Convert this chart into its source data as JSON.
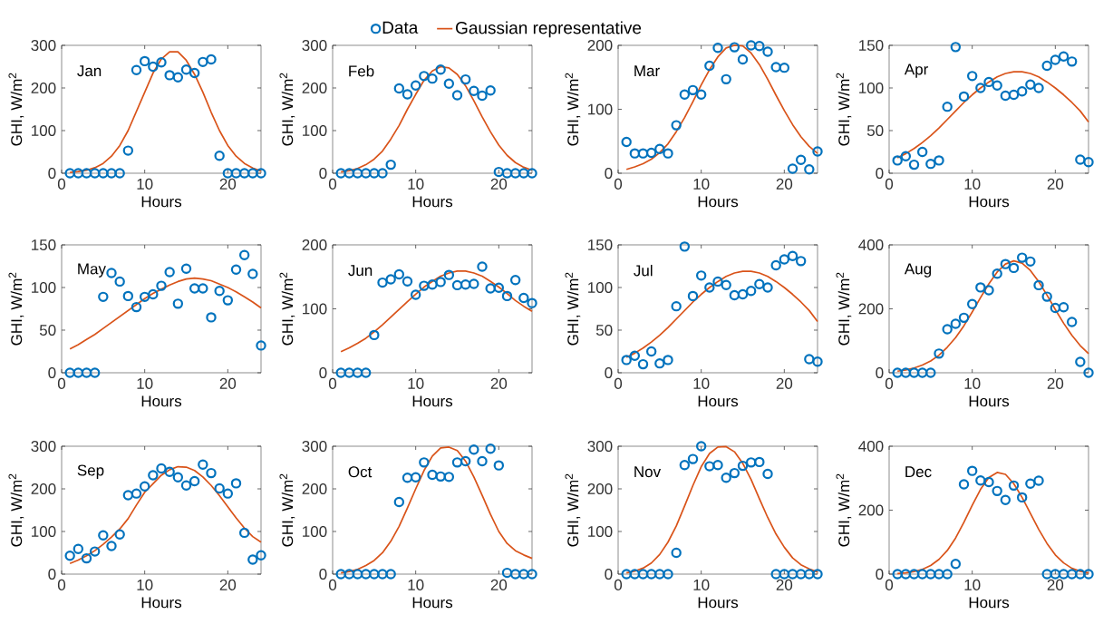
{
  "chart_data": [
    {
      "type": "scatter",
      "annotations": [
        "Jan"
      ],
      "xlabel": "Hours",
      "ylabel": "GHI, W/m$^{2}$",
      "xlim": [
        0,
        24
      ],
      "ylim": [
        0,
        300
      ],
      "xticks": [
        0,
        10,
        20
      ],
      "yticks": [
        0,
        100,
        200,
        300
      ],
      "legend": "top",
      "x": [
        1,
        2,
        3,
        4,
        5,
        6,
        7,
        8,
        9,
        10,
        11,
        12,
        13,
        14,
        15,
        16,
        17,
        18,
        19,
        20,
        21,
        22,
        23,
        24
      ],
      "series": [
        {
          "name": "Data",
          "marker": "circle",
          "color": "#0072bd",
          "values": [
            0,
            0,
            0,
            0,
            0,
            0,
            0,
            53,
            242,
            263,
            250,
            260,
            230,
            225,
            243,
            235,
            261,
            267,
            41,
            0,
            0,
            0,
            0,
            0
          ]
        },
        {
          "name": "Gaussian representative",
          "type": "line",
          "color": "#d95319",
          "values": [
            2,
            4,
            7,
            13,
            23,
            40,
            65,
            100,
            145,
            190,
            235,
            268,
            285,
            285,
            265,
            232,
            190,
            143,
            100,
            65,
            40,
            23,
            12,
            5
          ]
        }
      ]
    },
    {
      "type": "scatter",
      "annotations": [
        "Feb"
      ],
      "xlabel": "Hours",
      "ylabel": "GHI, W/m$^{2}$",
      "xlim": [
        0,
        24
      ],
      "ylim": [
        0,
        300
      ],
      "xticks": [
        0,
        10,
        20
      ],
      "yticks": [
        0,
        100,
        200,
        300
      ],
      "x": [
        1,
        2,
        3,
        4,
        5,
        6,
        7,
        8,
        9,
        10,
        11,
        12,
        13,
        14,
        15,
        16,
        17,
        18,
        19,
        20,
        21,
        22,
        23,
        24
      ],
      "series": [
        {
          "marker": "circle",
          "color": "#0072bd",
          "values": [
            0,
            0,
            0,
            0,
            0,
            0,
            20,
            199,
            185,
            206,
            228,
            222,
            243,
            210,
            183,
            220,
            193,
            182,
            194,
            3,
            0,
            0,
            0,
            0
          ]
        },
        {
          "type": "line",
          "color": "#d95319",
          "values": [
            3,
            6,
            11,
            20,
            33,
            52,
            80,
            112,
            150,
            185,
            218,
            240,
            250,
            247,
            232,
            205,
            170,
            132,
            97,
            66,
            42,
            25,
            14,
            7
          ]
        }
      ]
    },
    {
      "type": "scatter",
      "annotations": [
        "Mar"
      ],
      "xlabel": "Hours",
      "ylabel": "GHI, W/m$^{2}$",
      "xlim": [
        0,
        24
      ],
      "ylim": [
        0,
        200
      ],
      "xticks": [
        0,
        10,
        20
      ],
      "yticks": [
        0,
        100,
        200
      ],
      "x": [
        1,
        2,
        3,
        4,
        5,
        6,
        7,
        8,
        9,
        10,
        11,
        12,
        13,
        14,
        15,
        16,
        17,
        18,
        19,
        20,
        21,
        22,
        23,
        24
      ],
      "series": [
        {
          "marker": "circle",
          "color": "#0072bd",
          "values": [
            49,
            31,
            31,
            32,
            38,
            31,
            75,
            123,
            130,
            123,
            168,
            196,
            147,
            197,
            178,
            200,
            199,
            190,
            166,
            165,
            7,
            21,
            6,
            34
          ]
        },
        {
          "type": "line",
          "color": "#d95319",
          "values": [
            6,
            10,
            15,
            22,
            32,
            46,
            65,
            87,
            112,
            138,
            162,
            182,
            196,
            200,
            199,
            188,
            170,
            147,
            122,
            98,
            76,
            57,
            42,
            31
          ]
        }
      ]
    },
    {
      "type": "scatter",
      "annotations": [
        "Apr"
      ],
      "xlabel": "Hours",
      "ylabel": "GHI, W/m$^{2}$",
      "xlim": [
        0,
        24
      ],
      "ylim": [
        0,
        150
      ],
      "xticks": [
        0,
        10,
        20
      ],
      "yticks": [
        0,
        50,
        100,
        150
      ],
      "x": [
        1,
        2,
        3,
        4,
        5,
        6,
        7,
        8,
        9,
        10,
        11,
        12,
        13,
        14,
        15,
        16,
        17,
        18,
        19,
        20,
        21,
        22,
        23,
        24
      ],
      "series": [
        {
          "marker": "circle",
          "color": "#0072bd",
          "values": [
            15,
            20,
            10,
            25,
            11,
            15,
            78,
            148,
            90,
            114,
            100,
            107,
            103,
            91,
            92,
            96,
            104,
            100,
            126,
            133,
            137,
            131,
            16,
            13
          ]
        },
        {
          "type": "line",
          "color": "#d95319",
          "values": [
            18,
            23,
            29,
            36,
            44,
            53,
            63,
            73,
            83,
            92,
            100,
            107,
            113,
            117,
            119,
            119,
            117,
            113,
            107,
            100,
            92,
            83,
            73,
            60
          ]
        }
      ]
    },
    {
      "type": "scatter",
      "annotations": [
        "May"
      ],
      "xlabel": "Hours",
      "ylabel": "GHI, W/m$^{2}$",
      "xlim": [
        0,
        24
      ],
      "ylim": [
        0,
        150
      ],
      "xticks": [
        0,
        10,
        20
      ],
      "yticks": [
        0,
        50,
        100,
        150
      ],
      "x": [
        1,
        2,
        3,
        4,
        5,
        6,
        7,
        8,
        9,
        10,
        11,
        12,
        13,
        14,
        15,
        16,
        17,
        18,
        19,
        20,
        21,
        22,
        23,
        24
      ],
      "series": [
        {
          "marker": "circle",
          "color": "#0072bd",
          "values": [
            0,
            0,
            0,
            0,
            89,
            117,
            107,
            90,
            77,
            89,
            92,
            102,
            118,
            81,
            122,
            99,
            99,
            65,
            96,
            85,
            121,
            138,
            116,
            32
          ]
        },
        {
          "type": "line",
          "color": "#d95319",
          "values": [
            28,
            33,
            39,
            45,
            52,
            59,
            66,
            73,
            80,
            87,
            93,
            98,
            103,
            107,
            110,
            111,
            110,
            108,
            104,
            100,
            95,
            89,
            83,
            76
          ]
        }
      ]
    },
    {
      "type": "scatter",
      "annotations": [
        "Jun"
      ],
      "xlabel": "Hours",
      "ylabel": "GHI, W/m$^{2}$",
      "xlim": [
        0,
        24
      ],
      "ylim": [
        0,
        200
      ],
      "xticks": [
        0,
        10,
        20
      ],
      "yticks": [
        0,
        100,
        200
      ],
      "x": [
        1,
        2,
        3,
        4,
        5,
        6,
        7,
        8,
        9,
        10,
        11,
        12,
        13,
        14,
        15,
        16,
        17,
        18,
        19,
        20,
        21,
        22,
        23,
        24
      ],
      "series": [
        {
          "marker": "circle",
          "color": "#0072bd",
          "values": [
            0,
            0,
            0,
            0,
            59,
            141,
            146,
            154,
            143,
            122,
            136,
            138,
            142,
            153,
            137,
            138,
            139,
            166,
            132,
            133,
            120,
            145,
            117,
            109
          ]
        },
        {
          "type": "line",
          "color": "#d95319",
          "values": [
            33,
            39,
            46,
            54,
            64,
            75,
            87,
            99,
            111,
            123,
            134,
            143,
            151,
            156,
            159,
            159,
            156,
            151,
            143,
            134,
            124,
            113,
            104,
            96
          ]
        }
      ]
    },
    {
      "type": "scatter",
      "annotations": [
        "Jul"
      ],
      "xlabel": "Hours",
      "ylabel": "GHI, W/m$^{2}$",
      "xlim": [
        0,
        24
      ],
      "ylim": [
        0,
        150
      ],
      "xticks": [
        0,
        10,
        20
      ],
      "yticks": [
        0,
        50,
        100,
        150
      ],
      "x": [
        1,
        2,
        3,
        4,
        5,
        6,
        7,
        8,
        9,
        10,
        11,
        12,
        13,
        14,
        15,
        16,
        17,
        18,
        19,
        20,
        21,
        22,
        23,
        24
      ],
      "series": [
        {
          "marker": "circle",
          "color": "#0072bd",
          "values": [
            15,
            20,
            10,
            25,
            11,
            15,
            78,
            148,
            90,
            114,
            100,
            107,
            103,
            91,
            92,
            96,
            104,
            100,
            126,
            133,
            137,
            131,
            16,
            13
          ]
        },
        {
          "type": "line",
          "color": "#d95319",
          "values": [
            18,
            23,
            29,
            36,
            44,
            53,
            63,
            73,
            83,
            92,
            100,
            107,
            113,
            117,
            119,
            119,
            117,
            113,
            107,
            100,
            92,
            83,
            73,
            60
          ]
        }
      ]
    },
    {
      "type": "scatter",
      "annotations": [
        "Aug"
      ],
      "xlabel": "Hours",
      "ylabel": "GHI, W/m$^{2}$",
      "xlim": [
        0,
        24
      ],
      "ylim": [
        0,
        400
      ],
      "xticks": [
        0,
        10,
        20
      ],
      "yticks": [
        0,
        200,
        400
      ],
      "x": [
        1,
        2,
        3,
        4,
        5,
        6,
        7,
        8,
        9,
        10,
        11,
        12,
        13,
        14,
        15,
        16,
        17,
        18,
        19,
        20,
        21,
        22,
        23,
        24
      ],
      "series": [
        {
          "marker": "circle",
          "color": "#0072bd",
          "values": [
            0,
            0,
            0,
            0,
            0,
            60,
            136,
            153,
            172,
            215,
            267,
            258,
            310,
            340,
            328,
            360,
            348,
            274,
            238,
            203,
            205,
            159,
            34,
            0
          ]
        },
        {
          "type": "line",
          "color": "#d95319",
          "values": [
            5,
            9,
            15,
            24,
            37,
            55,
            80,
            110,
            147,
            190,
            235,
            278,
            315,
            340,
            350,
            343,
            320,
            285,
            243,
            198,
            155,
            117,
            85,
            60
          ]
        }
      ]
    },
    {
      "type": "scatter",
      "annotations": [
        "Sep"
      ],
      "xlabel": "Hours",
      "ylabel": "GHI, W/m$^{2}$",
      "xlim": [
        0,
        24
      ],
      "ylim": [
        0,
        300
      ],
      "xticks": [
        0,
        10,
        20
      ],
      "yticks": [
        0,
        100,
        200,
        300
      ],
      "x": [
        1,
        2,
        3,
        4,
        5,
        6,
        7,
        8,
        9,
        10,
        11,
        12,
        13,
        14,
        15,
        16,
        17,
        18,
        19,
        20,
        21,
        22,
        23,
        24
      ],
      "series": [
        {
          "marker": "circle",
          "color": "#0072bd",
          "values": [
            43,
            59,
            37,
            53,
            91,
            66,
            93,
            185,
            189,
            206,
            232,
            248,
            240,
            227,
            208,
            218,
            257,
            237,
            201,
            189,
            213,
            97,
            34,
            44
          ]
        },
        {
          "type": "line",
          "color": "#d95319",
          "values": [
            25,
            33,
            43,
            55,
            70,
            87,
            106,
            130,
            162,
            192,
            212,
            232,
            245,
            252,
            251,
            243,
            228,
            208,
            184,
            158,
            132,
            108,
            88,
            75
          ]
        }
      ]
    },
    {
      "type": "scatter",
      "annotations": [
        "Oct"
      ],
      "xlabel": "Hours",
      "ylabel": "GHI, W/m$^{2}$",
      "xlim": [
        0,
        24
      ],
      "ylim": [
        0,
        300
      ],
      "xticks": [
        0,
        10,
        20
      ],
      "yticks": [
        0,
        100,
        200,
        300
      ],
      "x": [
        1,
        2,
        3,
        4,
        5,
        6,
        7,
        8,
        9,
        10,
        11,
        12,
        13,
        14,
        15,
        16,
        17,
        18,
        19,
        20,
        21,
        22,
        23,
        24
      ],
      "series": [
        {
          "marker": "circle",
          "color": "#0072bd",
          "values": [
            0,
            0,
            0,
            0,
            0,
            0,
            0,
            169,
            226,
            227,
            262,
            233,
            229,
            228,
            262,
            265,
            292,
            265,
            294,
            255,
            3,
            0,
            0,
            0
          ]
        },
        {
          "type": "line",
          "color": "#d95319",
          "values": [
            3,
            6,
            11,
            20,
            32,
            50,
            77,
            112,
            155,
            200,
            243,
            277,
            296,
            298,
            290,
            265,
            228,
            185,
            140,
            100,
            72,
            55,
            45,
            37
          ]
        }
      ]
    },
    {
      "type": "scatter",
      "annotations": [
        "Nov"
      ],
      "xlabel": "Hours",
      "ylabel": "GHI, W/m$^{2}$",
      "xlim": [
        0,
        24
      ],
      "ylim": [
        0,
        300
      ],
      "xticks": [
        0,
        10,
        20
      ],
      "yticks": [
        0,
        100,
        200,
        300
      ],
      "x": [
        1,
        2,
        3,
        4,
        5,
        6,
        7,
        8,
        9,
        10,
        11,
        12,
        13,
        14,
        15,
        16,
        17,
        18,
        19,
        20,
        21,
        22,
        23,
        24
      ],
      "series": [
        {
          "marker": "circle",
          "color": "#0072bd",
          "values": [
            0,
            0,
            0,
            0,
            0,
            0,
            50,
            256,
            270,
            300,
            253,
            256,
            226,
            237,
            254,
            262,
            263,
            235,
            0,
            0,
            0,
            0,
            0,
            0
          ]
        },
        {
          "type": "line",
          "color": "#d95319",
          "values": [
            3,
            7,
            14,
            26,
            46,
            75,
            113,
            160,
            208,
            252,
            283,
            298,
            299,
            287,
            260,
            222,
            177,
            133,
            94,
            63,
            38,
            22,
            12,
            5
          ]
        }
      ]
    },
    {
      "type": "scatter",
      "annotations": [
        "Dec"
      ],
      "xlabel": "Hours",
      "ylabel": "GHI, W/m$^{2}$",
      "xlim": [
        0,
        24
      ],
      "ylim": [
        0,
        400
      ],
      "xticks": [
        0,
        10,
        20
      ],
      "yticks": [
        0,
        200,
        400
      ],
      "x": [
        1,
        2,
        3,
        4,
        5,
        6,
        7,
        8,
        9,
        10,
        11,
        12,
        13,
        14,
        15,
        16,
        17,
        18,
        19,
        20,
        21,
        22,
        23,
        24
      ],
      "series": [
        {
          "marker": "circle",
          "color": "#0072bd",
          "values": [
            0,
            0,
            0,
            0,
            0,
            0,
            0,
            32,
            281,
            323,
            293,
            288,
            260,
            232,
            277,
            240,
            283,
            292,
            0,
            0,
            0,
            0,
            0,
            0
          ]
        },
        {
          "type": "line",
          "color": "#d95319",
          "values": [
            2,
            4,
            8,
            15,
            27,
            46,
            74,
            113,
            162,
            215,
            265,
            302,
            318,
            312,
            283,
            240,
            190,
            140,
            96,
            60,
            35,
            18,
            9,
            4
          ]
        }
      ]
    }
  ]
}
